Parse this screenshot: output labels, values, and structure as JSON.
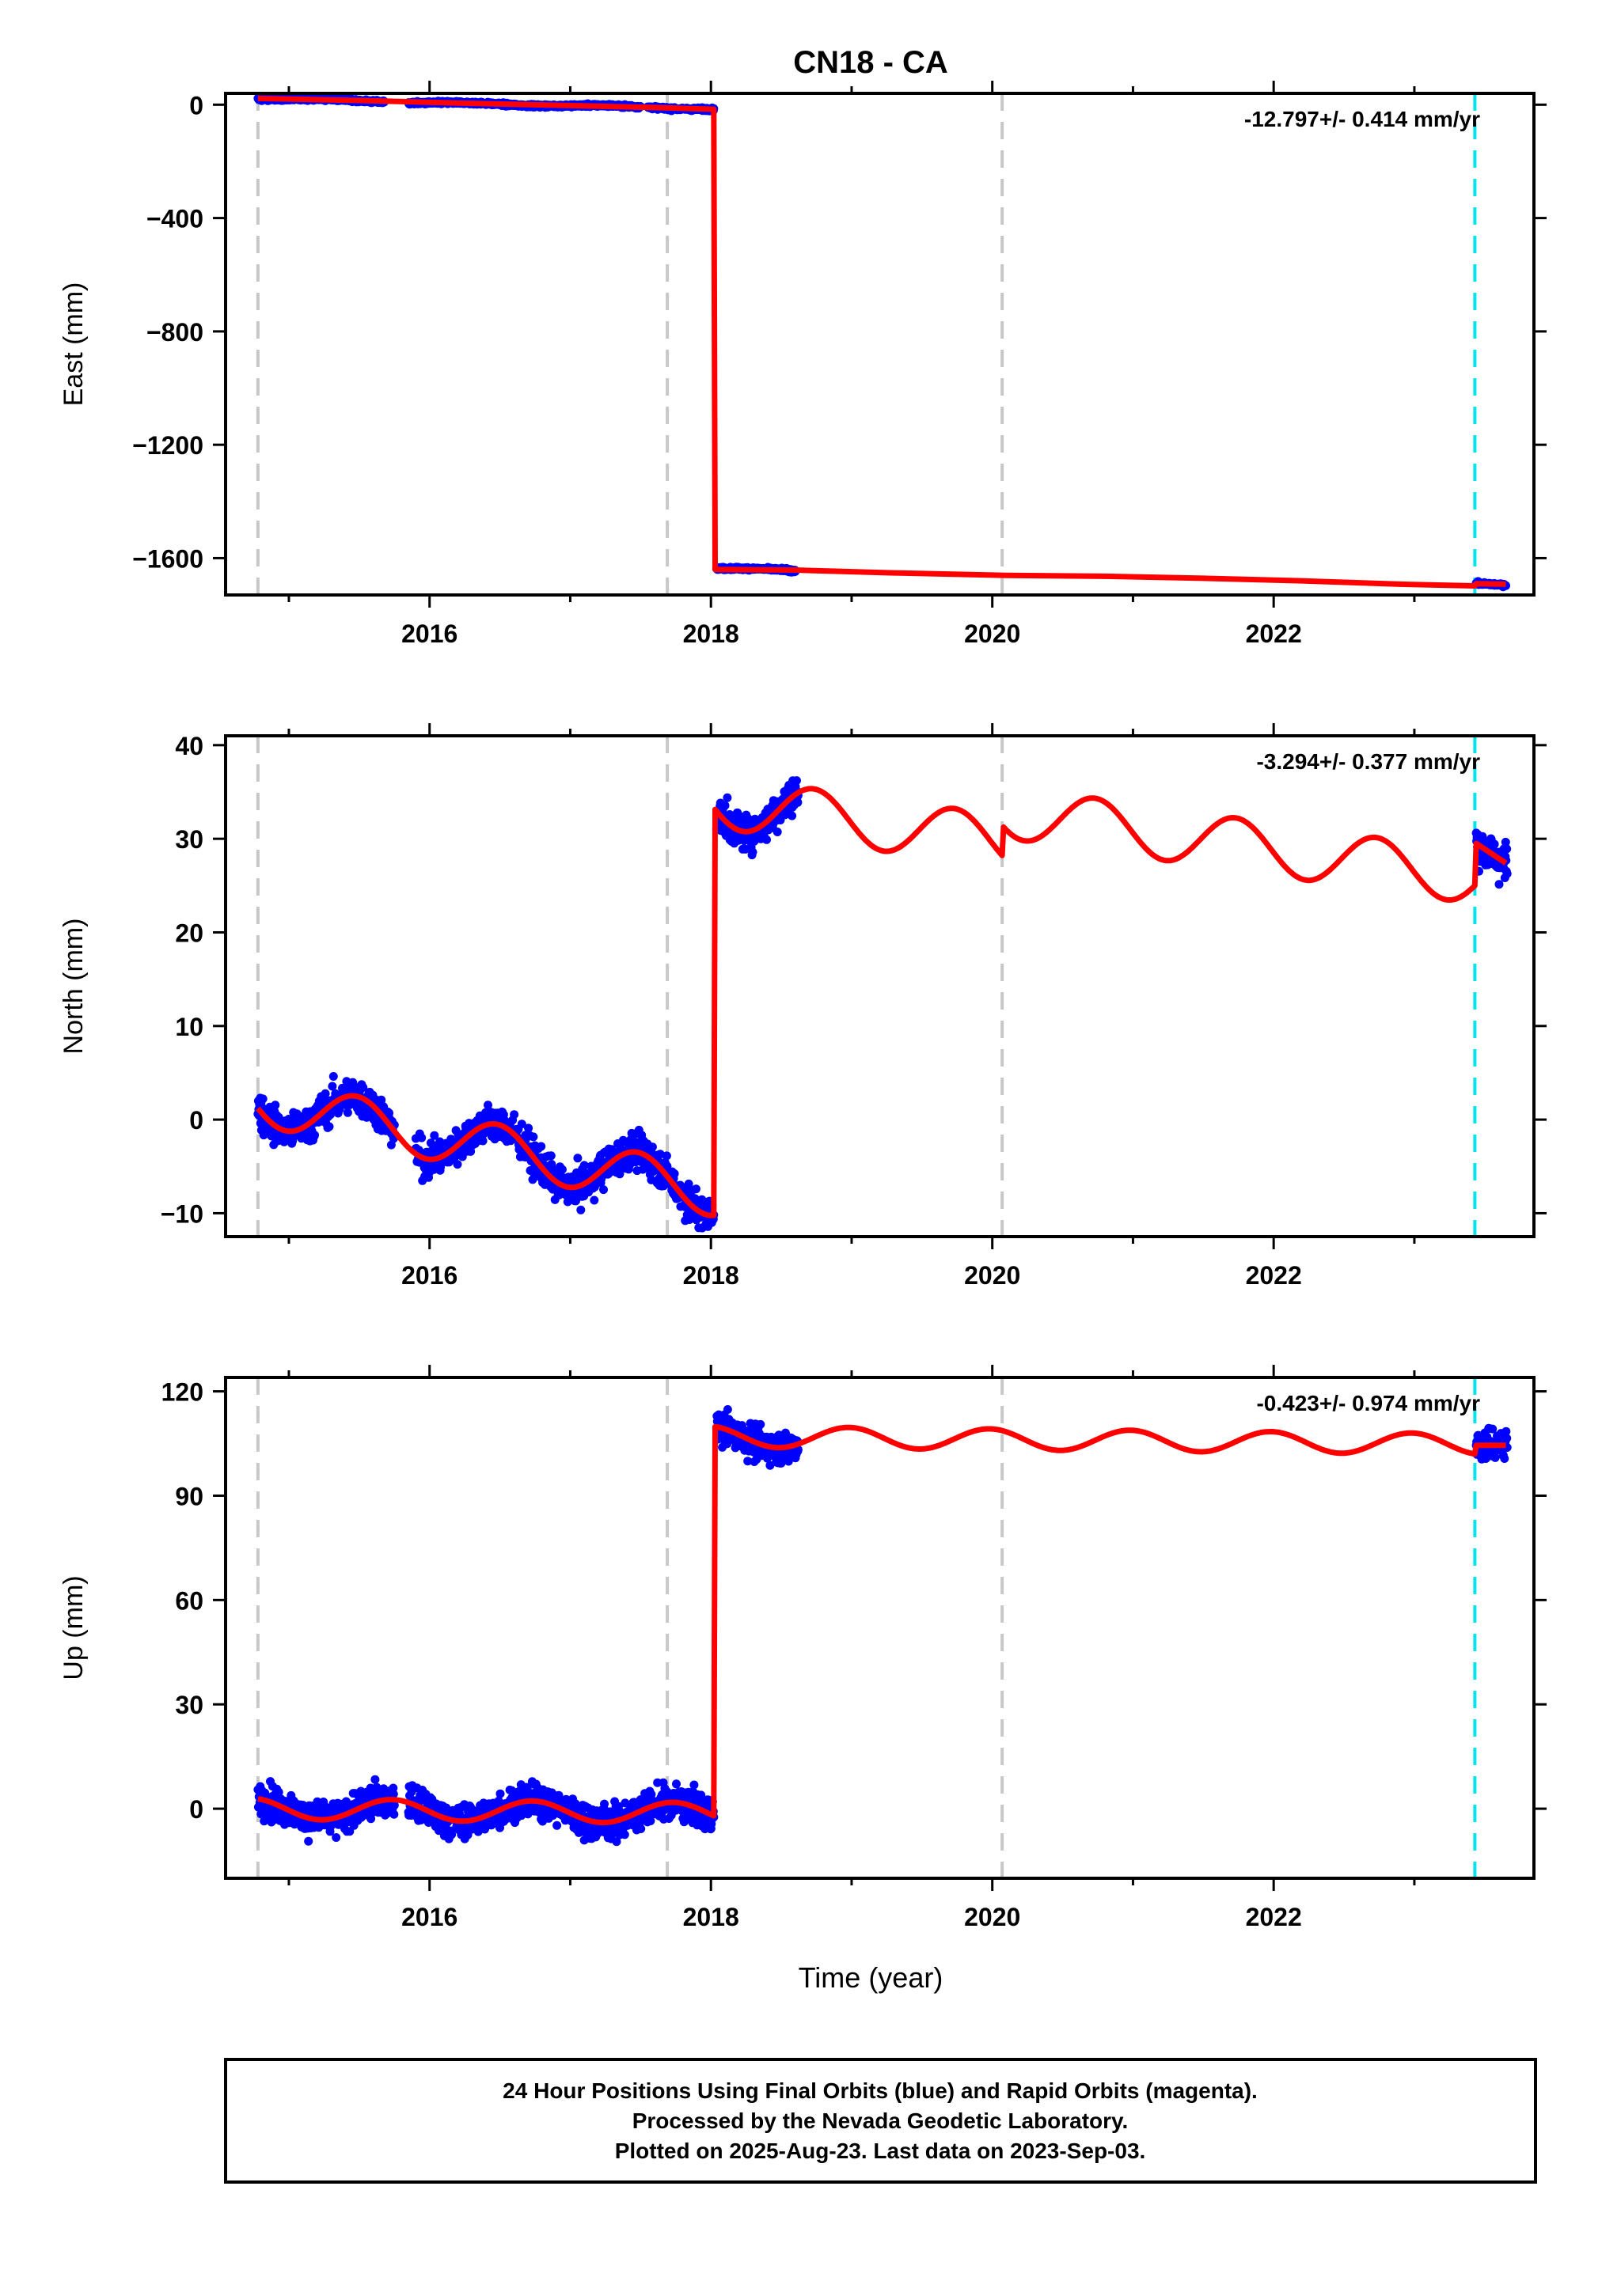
{
  "title": "CN18 - CA",
  "xlabel": "Time (year)",
  "footer": {
    "line1": "24 Hour Positions Using Final Orbits (blue) and Rapid Orbits (magenta).",
    "line2": "Processed by the Nevada Geodetic Laboratory.",
    "line3": "Plotted on 2025-Aug-23. Last data on 2023-Sep-03."
  },
  "colors": {
    "points": "#0000ff",
    "model": "#ff0000",
    "event_line": "#c8c8c8",
    "equipment_line": "#00e5ee",
    "frame": "#000000"
  },
  "chart_data": [
    {
      "type": "scatter",
      "component": "East",
      "ylabel": "East (mm)",
      "rate": "-12.797+/- 0.414 mm/yr",
      "xlim": [
        2014.55,
        2023.85
      ],
      "ylim": [
        -1730,
        40
      ],
      "xticks": [
        2016,
        2018,
        2020,
        2022
      ],
      "yticks": [
        0,
        -400,
        -800,
        -1200,
        -1600
      ],
      "event_lines": [
        2014.78,
        2017.69,
        2020.07
      ],
      "equipment_lines": [
        2023.43
      ],
      "model": [
        [
          2014.78,
          22
        ],
        [
          2015.5,
          15
        ],
        [
          2016.2,
          6
        ],
        [
          2016.9,
          -2
        ],
        [
          2017.6,
          -10
        ],
        [
          2018.02,
          -16
        ],
        [
          2018.03,
          -1640
        ],
        [
          2018.6,
          -1642
        ],
        [
          2019.3,
          -1652
        ],
        [
          2020.1,
          -1661
        ],
        [
          2020.8,
          -1664
        ],
        [
          2021.5,
          -1671
        ],
        [
          2022.2,
          -1680
        ],
        [
          2022.9,
          -1692
        ],
        [
          2023.43,
          -1698
        ],
        [
          2023.44,
          -1690
        ],
        [
          2023.65,
          -1692
        ]
      ],
      "points": {
        "segments": [
          {
            "from": 2014.78,
            "to": 2015.68,
            "y0": 22,
            "y1": 12,
            "amp": 3,
            "noise": 4
          },
          {
            "from": 2015.85,
            "to": 2017.5,
            "y0": 8,
            "y1": -8,
            "amp": 3,
            "noise": 4
          },
          {
            "from": 2017.55,
            "to": 2018.02,
            "y0": -8,
            "y1": -16,
            "amp": 3,
            "noise": 4
          },
          {
            "from": 2018.04,
            "to": 2018.6,
            "y0": -1638,
            "y1": -1642,
            "amp": 3,
            "noise": 4
          },
          {
            "from": 2023.44,
            "to": 2023.65,
            "y0": -1690,
            "y1": -1693,
            "amp": 2,
            "noise": 4
          }
        ]
      }
    },
    {
      "type": "scatter",
      "component": "North",
      "ylabel": "North (mm)",
      "rate": "-3.294+/- 0.377 mm/yr",
      "xlim": [
        2014.55,
        2023.85
      ],
      "ylim": [
        -12.5,
        41
      ],
      "xticks": [
        2016,
        2018,
        2020,
        2022
      ],
      "yticks": [
        40,
        30,
        20,
        10,
        0,
        -10
      ],
      "event_lines": [
        2014.78,
        2017.69,
        2020.07
      ],
      "equipment_lines": [
        2023.43
      ],
      "model": {
        "before": {
          "from": 2014.78,
          "to": 2018.02,
          "t0": 2014.78,
          "a": 2.0,
          "b": -3.0,
          "amp": 2.6,
          "phase": 0.55
        },
        "after": {
          "from": 2018.03,
          "to": 2023.43,
          "t0": 2018.03,
          "a": 34.0,
          "b": -2.1,
          "amp": 2.8,
          "phase": 0.55
        },
        "step_2020": {
          "at": 2020.07,
          "offset": 3.2
        },
        "last": {
          "from": 2023.44,
          "to": 2023.65,
          "a": 29.5,
          "b": -10.0
        }
      },
      "points": {
        "segments": [
          {
            "from": 2014.78,
            "to": 2015.75,
            "base": "before",
            "noise": 1.6
          },
          {
            "from": 2015.9,
            "to": 2018.02,
            "base": "before",
            "noise": 1.6
          },
          {
            "from": 2018.04,
            "to": 2018.62,
            "base": "after",
            "noise": 1.6
          },
          {
            "from": 2023.44,
            "to": 2023.66,
            "base": "last",
            "noise": 1.8
          }
        ]
      }
    },
    {
      "type": "scatter",
      "component": "Up",
      "ylabel": "Up (mm)",
      "rate": "-0.423+/- 0.974 mm/yr",
      "xlim": [
        2014.55,
        2023.85
      ],
      "ylim": [
        -20,
        124
      ],
      "xticks": [
        2016,
        2018,
        2020,
        2022
      ],
      "yticks": [
        120,
        90,
        60,
        30,
        0
      ],
      "event_lines": [
        2014.78,
        2017.69,
        2020.07
      ],
      "equipment_lines": [
        2023.43
      ],
      "model": {
        "before": {
          "from": 2014.78,
          "to": 2018.02,
          "t0": 2014.78,
          "a": 0.0,
          "b": -0.4,
          "amp": 3.0,
          "phase": 0.3
        },
        "after": {
          "from": 2018.03,
          "to": 2023.43,
          "t0": 2018.03,
          "a": 107.0,
          "b": -0.4,
          "amp": 3.0,
          "phase": 0.3
        },
        "last": {
          "from": 2023.44,
          "to": 2023.65,
          "a": 104.5,
          "b": 0.0
        }
      },
      "points": {
        "segments": [
          {
            "from": 2014.78,
            "to": 2015.75,
            "base": "before",
            "noise": 4.0
          },
          {
            "from": 2015.85,
            "to": 2018.02,
            "base": "before",
            "noise": 4.0
          },
          {
            "from": 2018.04,
            "to": 2018.62,
            "base": "after",
            "noise": 4.0
          },
          {
            "from": 2023.44,
            "to": 2023.66,
            "base": "last",
            "noise": 4.0
          }
        ]
      }
    }
  ]
}
